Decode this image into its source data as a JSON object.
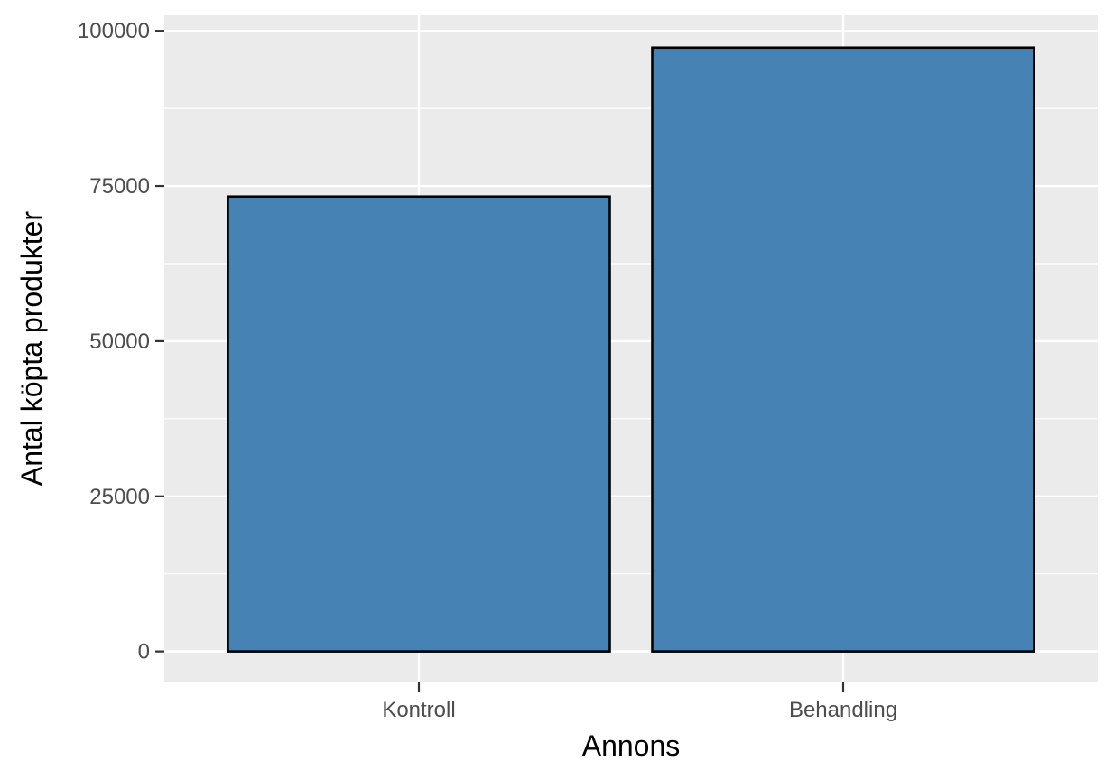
{
  "chart_data": {
    "type": "bar",
    "title": "",
    "xlabel": "Annons",
    "ylabel": "Antal köpta produkter",
    "categories": [
      "Kontroll",
      "Behandling"
    ],
    "values": [
      73300,
      97300
    ],
    "ylim": [
      -5000,
      102500
    ],
    "yticks": [
      0,
      25000,
      50000,
      75000,
      100000
    ],
    "ytick_labels": [
      "0",
      "25000",
      "50000",
      "75000",
      "100000"
    ],
    "grid": true,
    "legend": "none",
    "bar_color": "#4682b4",
    "bar_outline_color": "#000000",
    "panel_background": "#ebebeb",
    "grid_color": "#ffffff"
  }
}
